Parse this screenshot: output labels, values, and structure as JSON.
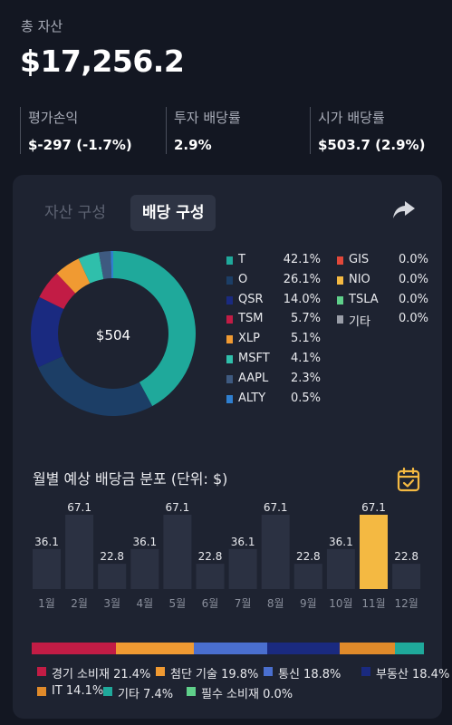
{
  "header": {
    "total_label": "총 자산",
    "total_value": "$17,256.2"
  },
  "stats": [
    {
      "label": "평가손익",
      "value": "$-297 (-1.7%)"
    },
    {
      "label": "투자 배당률",
      "value": "2.9%"
    },
    {
      "label": "시가 배당률",
      "value": "$503.7 (2.9%)"
    }
  ],
  "tabs": {
    "asset": "자산 구성",
    "dividend": "배당 구성",
    "selected": "dividend"
  },
  "icons": {
    "share": "share-icon",
    "calendar": "calendar-check-icon"
  },
  "donut": {
    "center_label": "$504"
  },
  "holdings": [
    {
      "ticker": "T",
      "pct": "42.1%",
      "value": 42.1,
      "color": "#1fa99b"
    },
    {
      "ticker": "O",
      "pct": "26.1%",
      "value": 26.1,
      "color": "#1c3e66"
    },
    {
      "ticker": "QSR",
      "pct": "14.0%",
      "value": 14.0,
      "color": "#1a2a80"
    },
    {
      "ticker": "TSM",
      "pct": "5.7%",
      "value": 5.7,
      "color": "#c21c45"
    },
    {
      "ticker": "XLP",
      "pct": "5.1%",
      "value": 5.1,
      "color": "#f09a32"
    },
    {
      "ticker": "MSFT",
      "pct": "4.1%",
      "value": 4.1,
      "color": "#2fbfab"
    },
    {
      "ticker": "AAPL",
      "pct": "2.3%",
      "value": 2.3,
      "color": "#3e5a80"
    },
    {
      "ticker": "ALTY",
      "pct": "0.5%",
      "value": 0.5,
      "color": "#2f7fd0"
    },
    {
      "ticker": "GIS",
      "pct": "0.0%",
      "value": 0.0,
      "color": "#e2483a"
    },
    {
      "ticker": "NIO",
      "pct": "0.0%",
      "value": 0.0,
      "color": "#f4b942"
    },
    {
      "ticker": "TSLA",
      "pct": "0.0%",
      "value": 0.0,
      "color": "#5fd08a"
    },
    {
      "ticker": "기타",
      "pct": "0.0%",
      "value": 0.0,
      "color": "#9a9ea8"
    }
  ],
  "monthly": {
    "title": "월별 예상 배당금 분포 (단위: $)"
  },
  "chart_data": {
    "type": "bar",
    "title": "월별 예상 배당금 분포 (단위: $)",
    "categories": [
      "1월",
      "2월",
      "3월",
      "4월",
      "5월",
      "6월",
      "7월",
      "8월",
      "9월",
      "10월",
      "11월",
      "12월"
    ],
    "values": [
      36.1,
      67.1,
      22.8,
      36.1,
      67.1,
      22.8,
      36.1,
      67.1,
      22.8,
      36.1,
      67.1,
      22.8
    ],
    "value_labels": [
      "36.1",
      "67.1",
      "22.8",
      "36.1",
      "67.1",
      "22.8",
      "36.1",
      "67.1",
      "22.8",
      "36.1",
      "67.1",
      "22.8"
    ],
    "highlighted_index": 10,
    "bar_color": "#2b3142",
    "highlight_color": "#f4b942",
    "ylim": [
      0,
      67.1
    ],
    "grid": false
  },
  "sectors": [
    {
      "name": "경기 소비재",
      "pct": "21.4%",
      "value": 21.4,
      "color": "#c21c45"
    },
    {
      "name": "첨단 기술",
      "pct": "19.8%",
      "value": 19.8,
      "color": "#f09a32"
    },
    {
      "name": "통신",
      "pct": "18.8%",
      "value": 18.8,
      "color": "#4a6fcf"
    },
    {
      "name": "부동산",
      "pct": "18.4%",
      "value": 18.4,
      "color": "#1a2a80"
    },
    {
      "name": "IT",
      "pct": "14.1%",
      "value": 14.1,
      "color": "#e08a2a"
    },
    {
      "name": "기타",
      "pct": "7.4%",
      "value": 7.4,
      "color": "#1fa99b"
    },
    {
      "name": "필수 소비재",
      "pct": "0.0%",
      "value": 0.0,
      "color": "#5fd08a"
    }
  ]
}
